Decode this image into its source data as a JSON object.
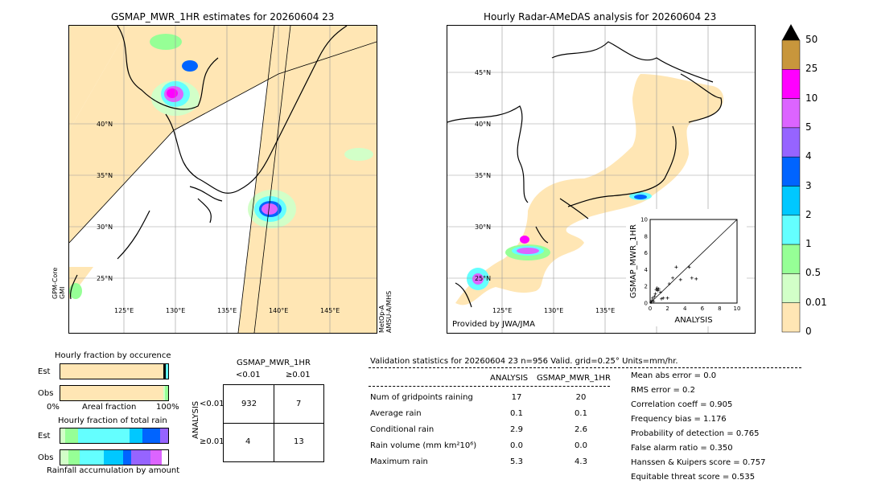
{
  "left_map": {
    "title": "GSMAP_MWR_1HR estimates for 20260604 23",
    "lon_labels": [
      "125°E",
      "130°E",
      "135°E",
      "140°E",
      "145°E"
    ],
    "lat_labels": [
      "40°N",
      "35°N",
      "30°N",
      "25°N"
    ],
    "sat_left": "GPM-Core\nGMI",
    "sat_right": "MetOp-A\nAMSU-A/MHS"
  },
  "right_map": {
    "title": "Hourly Radar-AMeDAS analysis for 20260604 23",
    "lon_labels": [
      "125°E",
      "130°E",
      "135°E"
    ],
    "lat_labels": [
      "45°N",
      "40°N",
      "35°N",
      "30°N",
      "25°N"
    ],
    "credit": "Provided by JWA/JMA"
  },
  "colorbar": {
    "labels": [
      "50",
      "25",
      "10",
      "5",
      "4",
      "3",
      "2",
      "1",
      "0.5",
      "0.01",
      "0"
    ],
    "colors": [
      "#c8963c",
      "#ff00ff",
      "#dc64ff",
      "#9664ff",
      "#0064ff",
      "#00c8ff",
      "#64ffff",
      "#96ff96",
      "#d2ffc8",
      "#ffe6b4"
    ]
  },
  "chart_data": [
    {
      "type": "scatter",
      "xlabel": "ANALYSIS",
      "ylabel": "GSMAP_MWR_1HR",
      "xlim": [
        0,
        10
      ],
      "ylim": [
        0,
        10
      ],
      "ticks": [
        "0",
        "2",
        "4",
        "6",
        "8",
        "10"
      ],
      "points": [
        [
          0.1,
          0.1
        ],
        [
          0.2,
          0.3
        ],
        [
          0.3,
          0.6
        ],
        [
          0.4,
          0.2
        ],
        [
          0.5,
          0.8
        ],
        [
          0.6,
          1.1
        ],
        [
          0.7,
          1.6
        ],
        [
          0.8,
          1.8
        ],
        [
          0.9,
          1.5
        ],
        [
          1.0,
          1.7
        ],
        [
          1.2,
          1.3
        ],
        [
          1.3,
          0.5
        ],
        [
          1.5,
          0.6
        ],
        [
          2.0,
          0.6
        ],
        [
          2.2,
          2.3
        ],
        [
          2.6,
          3.0
        ],
        [
          3.0,
          4.3
        ],
        [
          3.5,
          2.8
        ],
        [
          4.5,
          4.3
        ],
        [
          4.8,
          3.0
        ],
        [
          5.3,
          2.9
        ]
      ]
    },
    {
      "type": "bar",
      "title": "Hourly fraction by occurence",
      "categories": [
        "Est",
        "Obs"
      ],
      "xlabels": [
        "0%",
        "Areal fraction",
        "100%"
      ]
    },
    {
      "type": "bar",
      "title": "Hourly fraction of total rain",
      "categories": [
        "Est",
        "Obs"
      ],
      "xlabel": "Rainfall accumulation by amount"
    },
    {
      "type": "table",
      "title": "GSMAP_MWR_1HR",
      "col_headers": [
        "<0.01",
        "≥0.01"
      ],
      "row_axis": "ANALYSIS",
      "row_headers": [
        "<0.01",
        "≥0.01"
      ],
      "cells": [
        [
          "932",
          "7"
        ],
        [
          "4",
          "13"
        ]
      ]
    }
  ],
  "validation": {
    "title": "Validation statistics for 20260604 23  n=956 Valid. grid=0.25° Units=mm/hr.",
    "col_headers": [
      "ANALYSIS",
      "GSMAP_MWR_1HR"
    ],
    "rows": [
      {
        "label": "Num of gridpoints raining",
        "a": "17",
        "b": "20"
      },
      {
        "label": "Average rain",
        "a": "0.1",
        "b": "0.1"
      },
      {
        "label": "Conditional rain",
        "a": "2.9",
        "b": "2.6"
      },
      {
        "label": "Rain volume (mm km²10⁶)",
        "a": "0.0",
        "b": "0.0"
      },
      {
        "label": "Maximum rain",
        "a": "5.3",
        "b": "4.3"
      }
    ],
    "scores": [
      "Mean abs error =    0.0",
      "RMS error =    0.2",
      "Correlation coeff =  0.905",
      "Frequency bias =  1.176",
      "Probability of detection =  0.765",
      "False alarm ratio =  0.350",
      "Hanssen & Kuipers score =  0.757",
      "Equitable threat score =  0.535"
    ]
  }
}
